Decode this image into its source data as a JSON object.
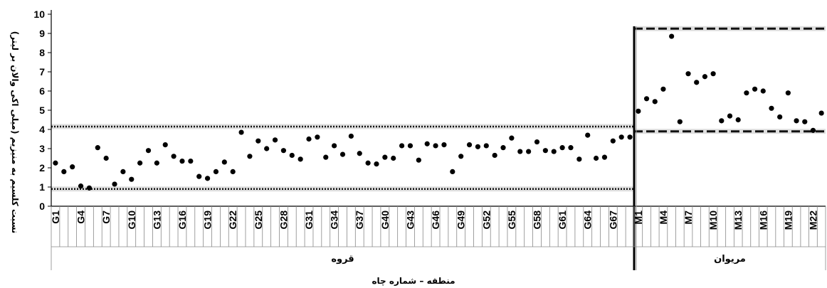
{
  "chart_data": {
    "type": "scatter",
    "title": "",
    "xlabel": "منطقه – شماره چاه",
    "ylabel": "نسبت کلسیم به منیزیم (میلی اکی والان بر لیتر)",
    "ylim": [
      0,
      10
    ],
    "yticks": [
      "0",
      "1",
      "2",
      "3",
      "4",
      "5",
      "6",
      "7",
      "8",
      "9",
      "10"
    ],
    "grid": false,
    "legend": "none",
    "colors": {
      "points": "#000000",
      "axis": "#000000",
      "grid_lines": "#888888",
      "shade": "#c8c8c8"
    },
    "groups": [
      {
        "name": "قروه",
        "tick_labels": [
          "G1",
          "G4",
          "G7",
          "G10",
          "G13",
          "G16",
          "G19",
          "G22",
          "G25",
          "G28",
          "G31",
          "G34",
          "G37",
          "G40",
          "G43",
          "G46",
          "G49",
          "G52",
          "G55",
          "G58",
          "G61",
          "G64",
          "G67"
        ],
        "values": [
          2.25,
          1.8,
          2.05,
          1.05,
          0.95,
          3.05,
          2.5,
          1.15,
          1.8,
          1.4,
          2.25,
          2.9,
          2.25,
          3.2,
          2.6,
          2.35,
          2.35,
          1.55,
          1.45,
          1.8,
          2.3,
          1.8,
          3.85,
          2.6,
          3.4,
          3.0,
          3.45,
          2.9,
          2.65,
          2.45,
          3.5,
          3.6,
          2.55,
          3.15,
          2.7,
          3.65,
          2.75,
          2.25,
          2.2,
          2.55,
          2.5,
          3.15,
          3.15,
          2.4,
          3.25,
          3.15,
          3.2,
          1.8,
          2.6,
          3.2,
          3.1,
          3.15,
          2.65,
          3.05,
          3.55,
          2.85,
          2.85,
          3.35,
          2.9,
          2.85,
          3.05,
          3.05,
          2.45,
          3.7,
          2.5,
          2.55,
          3.4,
          3.6,
          3.6
        ],
        "bounds": {
          "lower": 0.9,
          "upper": 4.15,
          "style": "dotted"
        }
      },
      {
        "name": "مریوان",
        "tick_labels": [
          "M1",
          "M4",
          "M7",
          "M10",
          "M13",
          "M16",
          "M19",
          "M22"
        ],
        "values": [
          4.95,
          5.6,
          5.45,
          6.1,
          8.85,
          4.4,
          6.9,
          6.45,
          6.75,
          6.9,
          4.45,
          4.7,
          4.5,
          5.9,
          6.1,
          6.0,
          5.1,
          4.65,
          5.9,
          4.45,
          4.4,
          3.95,
          4.85
        ],
        "bounds": {
          "lower": 3.9,
          "upper": 9.25,
          "style": "dashed"
        }
      }
    ]
  }
}
